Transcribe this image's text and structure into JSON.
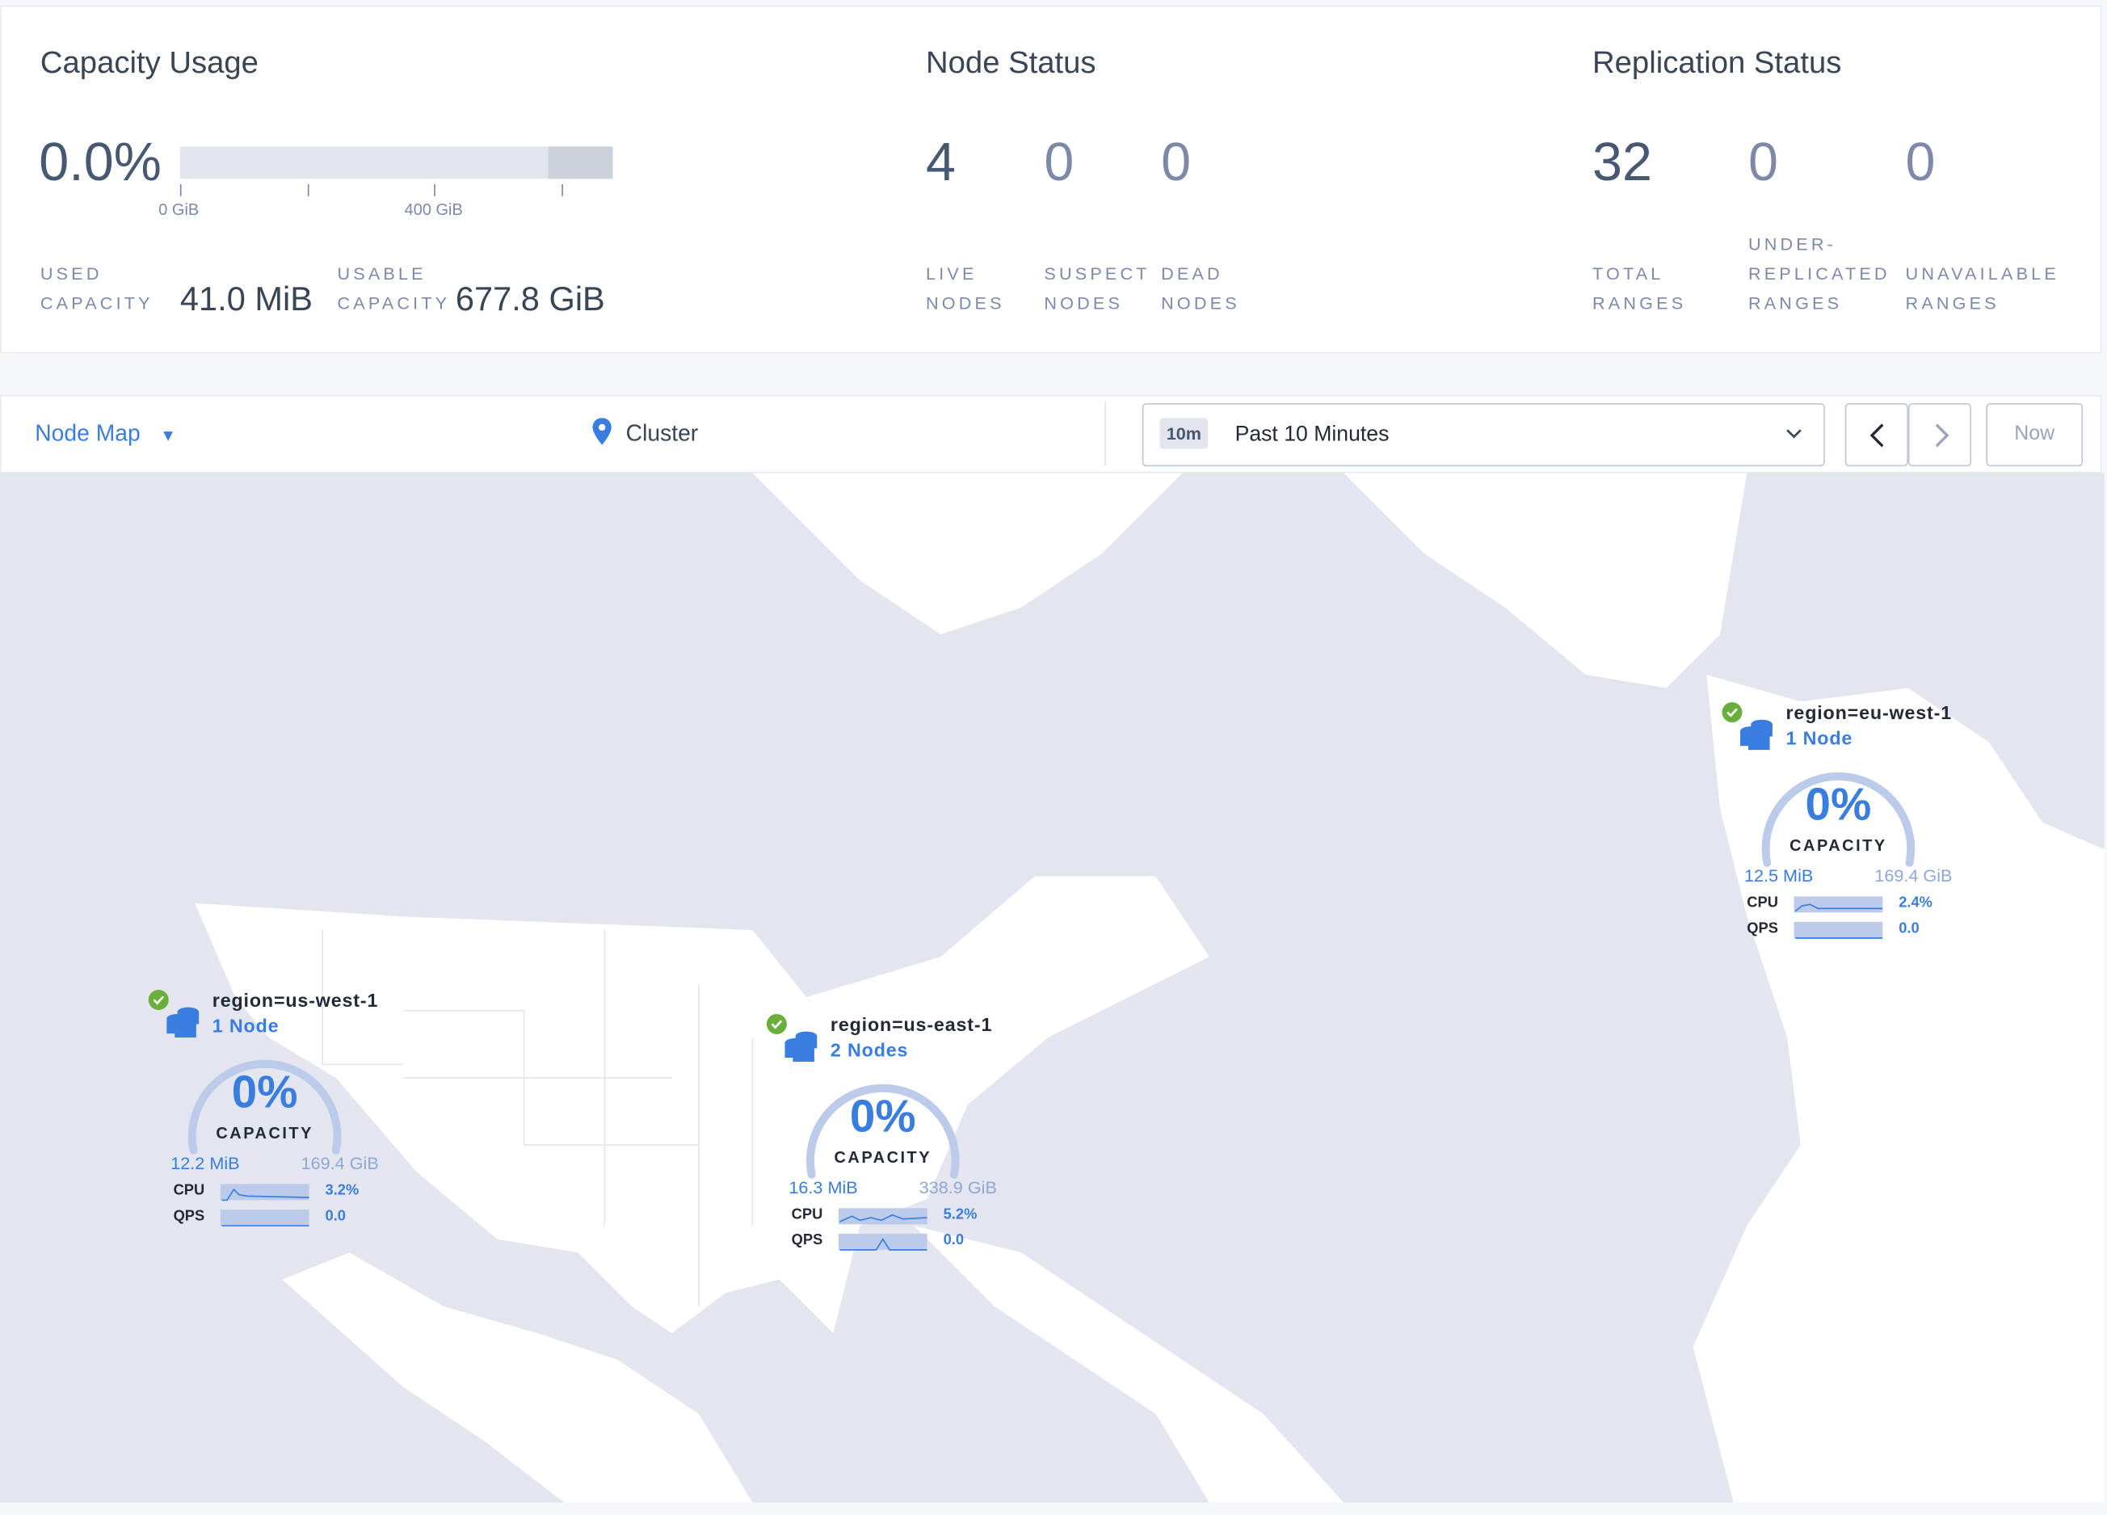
{
  "capacity": {
    "title": "Capacity Usage",
    "percent": "0.0%",
    "percent_value": 0.0,
    "axis_ticks": [
      "0 GiB",
      "400 GiB"
    ],
    "used_label_1": "USED",
    "used_label_2": "CAPACITY",
    "used_value": "41.0 MiB",
    "usable_label_1": "USABLE",
    "usable_label_2": "CAPACITY",
    "usable_value": "677.8 GiB"
  },
  "node_status": {
    "title": "Node Status",
    "live": "4",
    "live_l1": "LIVE",
    "live_l2": "NODES",
    "suspect": "0",
    "suspect_l1": "SUSPECT",
    "suspect_l2": "NODES",
    "dead": "0",
    "dead_l1": "DEAD",
    "dead_l2": "NODES"
  },
  "replication": {
    "title": "Replication Status",
    "total": "32",
    "total_l1": "TOTAL",
    "total_l2": "RANGES",
    "under": "0",
    "under_l1": "UNDER-",
    "under_l2": "REPLICATED",
    "under_l3": "RANGES",
    "unavail": "0",
    "unavail_l1": "UNAVAILABLE",
    "unavail_l2": "RANGES"
  },
  "toolbar": {
    "view": "Node Map",
    "cluster": "Cluster",
    "time_badge": "10m",
    "time_range": "Past 10 Minutes",
    "now": "Now"
  },
  "regions": [
    {
      "name": "region=us-west-1",
      "nodes": "1 Node",
      "percent": "0%",
      "cap": "CAPACITY",
      "used": "12.2 MiB",
      "total": "169.4 GiB",
      "cpu_label": "CPU",
      "cpu": "3.2%",
      "qps_label": "QPS",
      "qps": "0.0",
      "status": "healthy"
    },
    {
      "name": "region=us-east-1",
      "nodes": "2 Nodes",
      "percent": "0%",
      "cap": "CAPACITY",
      "used": "16.3 MiB",
      "total": "338.9 GiB",
      "cpu_label": "CPU",
      "cpu": "5.2%",
      "qps_label": "QPS",
      "qps": "0.0",
      "status": "healthy"
    },
    {
      "name": "region=eu-west-1",
      "nodes": "1 Node",
      "percent": "0%",
      "cap": "CAPACITY",
      "used": "12.5 MiB",
      "total": "169.4 GiB",
      "cpu_label": "CPU",
      "cpu": "2.4%",
      "qps_label": "QPS",
      "qps": "0.0",
      "status": "healthy"
    }
  ],
  "colors": {
    "accent": "#3a7de1",
    "healthy": "#6aae3b",
    "water": "#e3e6ee"
  }
}
